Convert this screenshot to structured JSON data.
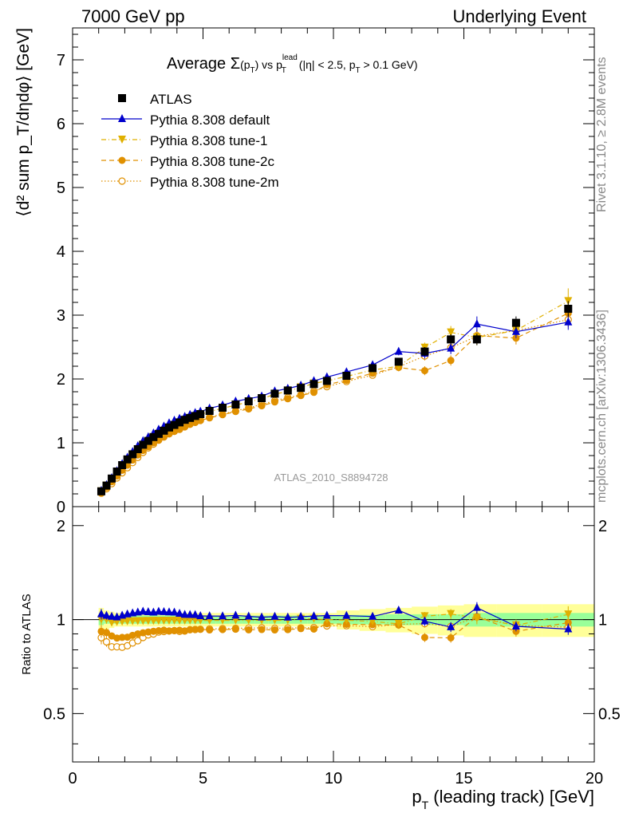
{
  "header": {
    "left": "7000 GeV pp",
    "right": "Underlying Event"
  },
  "side_text": {
    "rivet": "Rivet 3.1.10, ≥ 2.8M events",
    "mcplots": "mcplots.cern.ch [arXiv:1306.3436]"
  },
  "chart_data": {
    "type": "scatter",
    "title_parts": {
      "prefix": "Average ",
      "sigma": "Σ",
      "paren": "(p",
      "paren_sub": "T",
      "paren_close": ")",
      "vs": " vs p",
      "lead_sup": "lead",
      "lead_sub": "T",
      "cuts_a": " (|η| < 2.5, p",
      "cuts_sub": "T",
      "cuts_b": " > 0.1 GeV)"
    },
    "analysis_label": "ATLAS_2010_S8894728",
    "xlabel": {
      "main": "p",
      "sub": "T",
      "rest": " (leading track) [GeV]"
    },
    "ylabel_top": "⟨d² sum p_T/dηdφ⟩ [GeV]",
    "ylabel_bottom": "Ratio to ATLAS",
    "xlim": [
      0,
      20
    ],
    "ylim_top": [
      0,
      7.5
    ],
    "ylim_ratio": [
      0.35,
      2.3
    ],
    "ratio_log": true,
    "xticks": [
      "0",
      "5",
      "10",
      "15",
      "20"
    ],
    "yticks_top": [
      "0",
      "1",
      "2",
      "3",
      "4",
      "5",
      "6",
      "7"
    ],
    "yticks_ratio": [
      "0.5",
      "1",
      "2"
    ],
    "legend_position": "top-left",
    "x": [
      1.1,
      1.3,
      1.5,
      1.7,
      1.9,
      2.1,
      2.3,
      2.5,
      2.7,
      2.9,
      3.1,
      3.3,
      3.5,
      3.7,
      3.9,
      4.1,
      4.3,
      4.5,
      4.7,
      4.9,
      5.25,
      5.75,
      6.25,
      6.75,
      7.25,
      7.75,
      8.25,
      8.75,
      9.25,
      9.75,
      10.5,
      11.5,
      12.5,
      13.5,
      14.5,
      15.5,
      17.0,
      19.0
    ],
    "series": [
      {
        "name": "ATLAS",
        "color": "#000000",
        "marker": "square",
        "values": [
          0.24,
          0.33,
          0.44,
          0.55,
          0.65,
          0.74,
          0.82,
          0.9,
          0.97,
          1.03,
          1.09,
          1.14,
          1.19,
          1.24,
          1.28,
          1.32,
          1.36,
          1.39,
          1.42,
          1.45,
          1.5,
          1.55,
          1.6,
          1.65,
          1.7,
          1.77,
          1.82,
          1.86,
          1.92,
          1.97,
          2.05,
          2.17,
          2.27,
          2.43,
          2.62,
          2.62,
          2.88,
          3.1
        ],
        "errors": [
          0.01,
          0.01,
          0.01,
          0.01,
          0.01,
          0.01,
          0.01,
          0.01,
          0.01,
          0.01,
          0.01,
          0.01,
          0.01,
          0.01,
          0.01,
          0.01,
          0.01,
          0.01,
          0.02,
          0.02,
          0.02,
          0.02,
          0.02,
          0.02,
          0.02,
          0.03,
          0.03,
          0.03,
          0.03,
          0.04,
          0.04,
          0.05,
          0.06,
          0.07,
          0.08,
          0.09,
          0.1,
          0.12
        ],
        "band_inner": [
          0.04,
          0.03,
          0.03,
          0.03,
          0.03,
          0.03,
          0.03,
          0.03,
          0.03,
          0.03,
          0.03,
          0.03,
          0.03,
          0.03,
          0.03,
          0.03,
          0.03,
          0.03,
          0.03,
          0.03,
          0.03,
          0.03,
          0.03,
          0.03,
          0.03,
          0.03,
          0.03,
          0.03,
          0.03,
          0.03,
          0.035,
          0.035,
          0.04,
          0.04,
          0.04,
          0.05,
          0.05,
          0.05
        ],
        "band_outer": [
          0.09,
          0.07,
          0.06,
          0.05,
          0.05,
          0.05,
          0.05,
          0.05,
          0.05,
          0.05,
          0.05,
          0.05,
          0.05,
          0.05,
          0.05,
          0.05,
          0.05,
          0.05,
          0.05,
          0.05,
          0.05,
          0.05,
          0.05,
          0.05,
          0.05,
          0.05,
          0.05,
          0.05,
          0.05,
          0.05,
          0.07,
          0.08,
          0.09,
          0.1,
          0.11,
          0.12,
          0.12,
          0.12
        ]
      },
      {
        "name": "Pythia 8.308 default",
        "color": "#0000cc",
        "marker": "triangle-up",
        "line": "solid",
        "values": [
          0.25,
          0.34,
          0.45,
          0.56,
          0.67,
          0.77,
          0.86,
          0.95,
          1.03,
          1.09,
          1.15,
          1.21,
          1.26,
          1.31,
          1.35,
          1.38,
          1.41,
          1.44,
          1.47,
          1.49,
          1.54,
          1.59,
          1.65,
          1.69,
          1.73,
          1.81,
          1.85,
          1.9,
          1.97,
          2.03,
          2.11,
          2.22,
          2.43,
          2.4,
          2.48,
          2.86,
          2.74,
          2.89
        ],
        "errors": [
          0.01,
          0.01,
          0.01,
          0.01,
          0.01,
          0.01,
          0.01,
          0.01,
          0.01,
          0.01,
          0.01,
          0.01,
          0.01,
          0.01,
          0.01,
          0.01,
          0.01,
          0.01,
          0.02,
          0.02,
          0.02,
          0.02,
          0.02,
          0.02,
          0.02,
          0.03,
          0.03,
          0.03,
          0.03,
          0.04,
          0.04,
          0.05,
          0.06,
          0.08,
          0.09,
          0.12,
          0.1,
          0.12
        ]
      },
      {
        "name": "Pythia 8.308 tune-1",
        "color": "#e0b000",
        "marker": "triangle-down",
        "line": "dashdot",
        "values": [
          0.24,
          0.33,
          0.43,
          0.54,
          0.64,
          0.73,
          0.81,
          0.89,
          0.96,
          1.02,
          1.08,
          1.13,
          1.18,
          1.23,
          1.27,
          1.31,
          1.35,
          1.38,
          1.41,
          1.44,
          1.49,
          1.54,
          1.59,
          1.64,
          1.69,
          1.76,
          1.81,
          1.87,
          1.93,
          1.97,
          2.04,
          2.14,
          2.2,
          2.49,
          2.73,
          2.65,
          2.76,
          3.22
        ],
        "errors": [
          0.01,
          0.01,
          0.01,
          0.01,
          0.01,
          0.01,
          0.01,
          0.01,
          0.01,
          0.01,
          0.01,
          0.01,
          0.01,
          0.01,
          0.01,
          0.01,
          0.01,
          0.01,
          0.02,
          0.02,
          0.02,
          0.02,
          0.02,
          0.02,
          0.02,
          0.03,
          0.03,
          0.03,
          0.03,
          0.04,
          0.04,
          0.05,
          0.06,
          0.08,
          0.1,
          0.12,
          0.12,
          0.2
        ]
      },
      {
        "name": "Pythia 8.308 tune-2c",
        "color": "#e09000",
        "marker": "circle",
        "line": "dashed",
        "values": [
          0.22,
          0.3,
          0.39,
          0.48,
          0.57,
          0.65,
          0.73,
          0.81,
          0.88,
          0.94,
          1.0,
          1.05,
          1.1,
          1.14,
          1.18,
          1.22,
          1.25,
          1.29,
          1.32,
          1.35,
          1.39,
          1.44,
          1.49,
          1.53,
          1.58,
          1.64,
          1.69,
          1.74,
          1.79,
          1.91,
          1.98,
          2.09,
          2.18,
          2.13,
          2.29,
          2.68,
          2.64,
          3.03
        ],
        "errors": [
          0.01,
          0.01,
          0.01,
          0.01,
          0.01,
          0.01,
          0.01,
          0.01,
          0.01,
          0.01,
          0.01,
          0.01,
          0.01,
          0.01,
          0.01,
          0.01,
          0.01,
          0.01,
          0.02,
          0.02,
          0.02,
          0.02,
          0.02,
          0.02,
          0.02,
          0.03,
          0.03,
          0.03,
          0.03,
          0.04,
          0.04,
          0.05,
          0.06,
          0.07,
          0.08,
          0.1,
          0.1,
          0.14
        ]
      },
      {
        "name": "Pythia 8.308 tune-2m",
        "color": "#e09000",
        "marker": "circle-open",
        "line": "dotted",
        "values": [
          0.21,
          0.28,
          0.36,
          0.45,
          0.53,
          0.61,
          0.69,
          0.77,
          0.85,
          0.92,
          0.98,
          1.04,
          1.09,
          1.14,
          1.18,
          1.21,
          1.25,
          1.29,
          1.32,
          1.35,
          1.4,
          1.45,
          1.5,
          1.55,
          1.6,
          1.66,
          1.71,
          1.75,
          1.81,
          1.88,
          1.96,
          2.06,
          2.19,
          2.36,
          2.49,
          2.67,
          2.76,
          2.93
        ],
        "errors": [
          0.01,
          0.01,
          0.01,
          0.01,
          0.01,
          0.01,
          0.01,
          0.01,
          0.01,
          0.01,
          0.01,
          0.01,
          0.01,
          0.01,
          0.01,
          0.01,
          0.01,
          0.01,
          0.02,
          0.02,
          0.02,
          0.02,
          0.02,
          0.02,
          0.02,
          0.03,
          0.03,
          0.03,
          0.03,
          0.04,
          0.04,
          0.05,
          0.06,
          0.07,
          0.08,
          0.1,
          0.1,
          0.12
        ]
      }
    ],
    "band_colors": {
      "inner": "#99ff99",
      "outer": "#ffff99"
    }
  }
}
